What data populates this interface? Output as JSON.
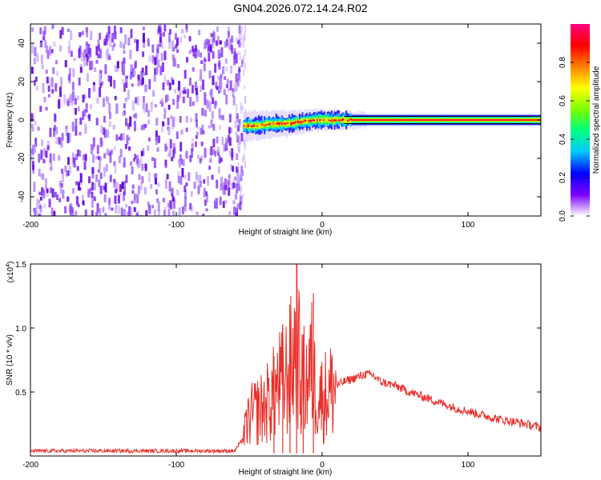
{
  "title": "GN04.2026.072.14.24.R02",
  "chart_data": [
    {
      "type": "heatmap",
      "xlabel": "Height of straight line (km)",
      "ylabel": "Frequency (Hz)",
      "xlim": [
        -200,
        150
      ],
      "ylim": [
        -50,
        50
      ],
      "xticks": [
        -200,
        -100,
        0,
        100
      ],
      "yticks": [
        -40,
        -20,
        0,
        20,
        40
      ],
      "noise_region_x": [
        -200,
        -54
      ],
      "signal_center_freq": [
        [
          -54,
          -3
        ],
        [
          -45,
          -3
        ],
        [
          -35,
          -2
        ],
        [
          -25,
          -2
        ],
        [
          -15,
          -1
        ],
        [
          -5,
          0
        ],
        [
          5,
          0
        ],
        [
          15,
          0
        ],
        [
          150,
          0
        ]
      ],
      "colorbar": {
        "label": "Normalized spectral amplitude",
        "range": [
          0.0,
          1.0
        ],
        "ticks": [
          0.0,
          0.2,
          0.4,
          0.6,
          0.8
        ],
        "tick_labels": [
          "0.0",
          "0.2",
          "0.4",
          "0.6",
          "0.8"
        ],
        "colors": [
          "#ffffff",
          "#7b00ff",
          "#0000ff",
          "#00c8ff",
          "#00ff80",
          "#7cff00",
          "#ffff00",
          "#ff8000",
          "#ff0000",
          "#ff0080"
        ]
      }
    },
    {
      "type": "line",
      "xlabel": "Height of straight line (km)",
      "ylabel": "SNR (10 * v/v)",
      "yscale_label": "(x10",
      "yscale_exp": "4",
      "yscale_close": ")",
      "xlim": [
        -200,
        150
      ],
      "ylim": [
        0,
        1.5
      ],
      "xticks": [
        -200,
        -100,
        0,
        100
      ],
      "yticks": [
        0.5,
        1.0,
        1.5
      ],
      "ytick_labels": [
        "0.5",
        "1.0",
        "1.5"
      ],
      "color": "#e8302a",
      "series": [
        {
          "x": [
            -200,
            -150,
            -100,
            -60,
            -55,
            -50,
            -45,
            -40,
            -35,
            -30,
            -25,
            -20,
            -17,
            -15,
            -10,
            -7,
            -5,
            0,
            5,
            10,
            15,
            20,
            25,
            30,
            35,
            40,
            50,
            60,
            70,
            80,
            90,
            100,
            110,
            120,
            130,
            140,
            150
          ],
          "values": [
            0.04,
            0.04,
            0.04,
            0.04,
            0.12,
            0.3,
            0.35,
            0.38,
            0.45,
            0.55,
            0.6,
            0.75,
            1.0,
            0.55,
            0.6,
            0.7,
            0.55,
            0.45,
            0.5,
            0.55,
            0.58,
            0.6,
            0.62,
            0.64,
            0.63,
            0.58,
            0.55,
            0.5,
            0.46,
            0.42,
            0.38,
            0.35,
            0.32,
            0.29,
            0.27,
            0.25,
            0.22
          ]
        }
      ],
      "spikes": [
        {
          "x": -17.5,
          "value": 1.5
        },
        {
          "x": -6,
          "value": 1.27
        },
        {
          "x": -27,
          "value": 1.03
        },
        {
          "x": -22,
          "value": 0.92
        },
        {
          "x": -13,
          "value": 0.95
        },
        {
          "x": -33,
          "value": 0.78
        }
      ]
    }
  ]
}
